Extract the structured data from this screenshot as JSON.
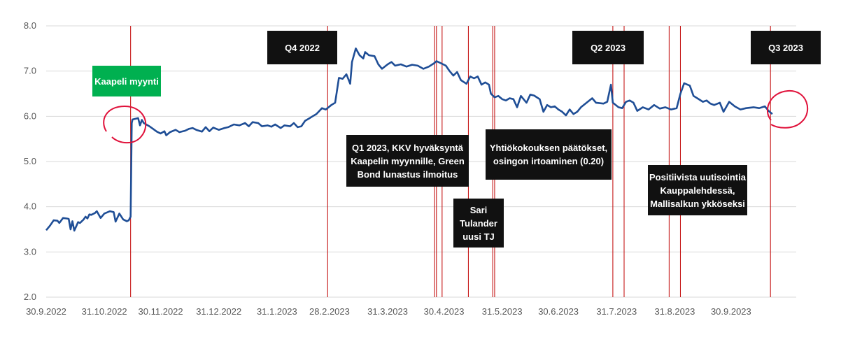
{
  "chart_data": {
    "type": "line",
    "title": "",
    "xlabel": "",
    "ylabel": "",
    "ylim": [
      2.0,
      8.0
    ],
    "y_ticks": [
      "2.0",
      "3.0",
      "4.0",
      "5.0",
      "6.0",
      "7.0",
      "8.0"
    ],
    "x_range": [
      "2022-09-30",
      "2023-10-31"
    ],
    "x_ticks": [
      {
        "date": "2022-09-30",
        "label": "30.9.2022"
      },
      {
        "date": "2022-10-31",
        "label": "31.10.2022"
      },
      {
        "date": "2022-11-30",
        "label": "30.11.2022"
      },
      {
        "date": "2022-12-31",
        "label": "31.12.2022"
      },
      {
        "date": "2023-01-31",
        "label": "31.1.2023"
      },
      {
        "date": "2023-02-28",
        "label": "28.2.2023"
      },
      {
        "date": "2023-03-31",
        "label": "31.3.2023"
      },
      {
        "date": "2023-04-30",
        "label": "30.4.2023"
      },
      {
        "date": "2023-05-31",
        "label": "31.5.2023"
      },
      {
        "date": "2023-06-30",
        "label": "30.6.2023"
      },
      {
        "date": "2023-07-31",
        "label": "31.7.2023"
      },
      {
        "date": "2023-08-31",
        "label": "31.8.2023"
      },
      {
        "date": "2023-09-30",
        "label": "30.9.2023"
      }
    ],
    "grid": true,
    "series": [
      {
        "color": "#1f4e96",
        "points": [
          [
            "2022-09-30",
            3.48
          ],
          [
            "2022-10-02",
            3.58
          ],
          [
            "2022-10-04",
            3.7
          ],
          [
            "2022-10-06",
            3.69
          ],
          [
            "2022-10-07",
            3.64
          ],
          [
            "2022-10-09",
            3.75
          ],
          [
            "2022-10-11",
            3.74
          ],
          [
            "2022-10-12",
            3.73
          ],
          [
            "2022-10-13",
            3.5
          ],
          [
            "2022-10-14",
            3.68
          ],
          [
            "2022-10-15",
            3.47
          ],
          [
            "2022-10-17",
            3.66
          ],
          [
            "2022-10-18",
            3.64
          ],
          [
            "2022-10-20",
            3.72
          ],
          [
            "2022-10-21",
            3.78
          ],
          [
            "2022-10-22",
            3.74
          ],
          [
            "2022-10-23",
            3.83
          ],
          [
            "2022-10-24",
            3.82
          ],
          [
            "2022-10-26",
            3.86
          ],
          [
            "2022-10-27",
            3.9
          ],
          [
            "2022-10-29",
            3.75
          ],
          [
            "2022-10-31",
            3.85
          ],
          [
            "2022-11-03",
            3.9
          ],
          [
            "2022-11-05",
            3.88
          ],
          [
            "2022-11-06",
            3.67
          ],
          [
            "2022-11-08",
            3.85
          ],
          [
            "2022-11-10",
            3.72
          ],
          [
            "2022-11-12",
            3.68
          ],
          [
            "2022-11-13",
            3.7
          ],
          [
            "2022-11-14",
            3.78
          ],
          [
            "2022-11-14.6",
            5.85
          ],
          [
            "2022-11-15",
            5.93
          ],
          [
            "2022-11-17",
            5.95
          ],
          [
            "2022-11-18",
            5.96
          ],
          [
            "2022-11-19",
            5.8
          ],
          [
            "2022-11-20",
            5.92
          ],
          [
            "2022-11-21",
            5.85
          ],
          [
            "2022-11-24",
            5.78
          ],
          [
            "2022-11-26",
            5.72
          ],
          [
            "2022-11-28",
            5.66
          ],
          [
            "2022-11-30",
            5.62
          ],
          [
            "2022-12-02",
            5.67
          ],
          [
            "2022-12-03",
            5.58
          ],
          [
            "2022-12-05",
            5.65
          ],
          [
            "2022-12-08",
            5.7
          ],
          [
            "2022-12-10",
            5.65
          ],
          [
            "2022-12-13",
            5.68
          ],
          [
            "2022-12-15",
            5.72
          ],
          [
            "2022-12-17",
            5.74
          ],
          [
            "2022-12-19",
            5.7
          ],
          [
            "2022-12-22",
            5.66
          ],
          [
            "2022-12-24",
            5.76
          ],
          [
            "2022-12-26",
            5.67
          ],
          [
            "2022-12-28",
            5.75
          ],
          [
            "2022-12-31",
            5.7
          ],
          [
            "2023-01-03",
            5.74
          ],
          [
            "2023-01-05",
            5.76
          ],
          [
            "2023-01-08",
            5.82
          ],
          [
            "2023-01-11",
            5.8
          ],
          [
            "2023-01-14",
            5.85
          ],
          [
            "2023-01-16",
            5.78
          ],
          [
            "2023-01-18",
            5.87
          ],
          [
            "2023-01-21",
            5.85
          ],
          [
            "2023-01-23",
            5.78
          ],
          [
            "2023-01-26",
            5.8
          ],
          [
            "2023-01-28",
            5.77
          ],
          [
            "2023-01-30",
            5.82
          ],
          [
            "2023-02-02",
            5.74
          ],
          [
            "2023-02-04",
            5.8
          ],
          [
            "2023-02-07",
            5.78
          ],
          [
            "2023-02-09",
            5.85
          ],
          [
            "2023-02-11",
            5.76
          ],
          [
            "2023-02-13",
            5.78
          ],
          [
            "2023-02-15",
            5.9
          ],
          [
            "2023-02-17",
            5.95
          ],
          [
            "2023-02-19",
            6.0
          ],
          [
            "2023-02-21",
            6.05
          ],
          [
            "2023-02-24",
            6.18
          ],
          [
            "2023-02-26",
            6.15
          ],
          [
            "2023-03-01",
            6.25
          ],
          [
            "2023-03-03",
            6.3
          ],
          [
            "2023-03-05",
            6.85
          ],
          [
            "2023-03-07",
            6.83
          ],
          [
            "2023-03-09",
            6.93
          ],
          [
            "2023-03-11",
            6.72
          ],
          [
            "2023-03-12",
            7.2
          ],
          [
            "2023-03-14",
            7.5
          ],
          [
            "2023-03-16",
            7.35
          ],
          [
            "2023-03-18",
            7.28
          ],
          [
            "2023-03-19",
            7.42
          ],
          [
            "2023-03-21",
            7.35
          ],
          [
            "2023-03-24",
            7.33
          ],
          [
            "2023-03-26",
            7.15
          ],
          [
            "2023-03-28",
            7.05
          ],
          [
            "2023-03-31",
            7.15
          ],
          [
            "2023-04-02",
            7.2
          ],
          [
            "2023-04-04",
            7.12
          ],
          [
            "2023-04-07",
            7.15
          ],
          [
            "2023-04-10",
            7.1
          ],
          [
            "2023-04-13",
            7.14
          ],
          [
            "2023-04-16",
            7.12
          ],
          [
            "2023-04-19",
            7.05
          ],
          [
            "2023-04-22",
            7.1
          ],
          [
            "2023-04-25",
            7.18
          ],
          [
            "2023-04-26",
            7.22
          ],
          [
            "2023-04-28",
            7.18
          ],
          [
            "2023-05-01",
            7.12
          ],
          [
            "2023-05-03",
            7.0
          ],
          [
            "2023-05-05",
            6.9
          ],
          [
            "2023-05-07",
            6.98
          ],
          [
            "2023-05-09",
            6.8
          ],
          [
            "2023-05-12",
            6.72
          ],
          [
            "2023-05-14",
            6.88
          ],
          [
            "2023-05-16",
            6.84
          ],
          [
            "2023-05-18",
            6.88
          ],
          [
            "2023-05-20",
            6.7
          ],
          [
            "2023-05-22",
            6.75
          ],
          [
            "2023-05-24",
            6.7
          ],
          [
            "2023-05-25",
            6.5
          ],
          [
            "2023-05-27",
            6.42
          ],
          [
            "2023-05-29",
            6.45
          ],
          [
            "2023-05-31",
            6.38
          ],
          [
            "2023-06-02",
            6.35
          ],
          [
            "2023-06-04",
            6.4
          ],
          [
            "2023-06-06",
            6.38
          ],
          [
            "2023-06-08",
            6.2
          ],
          [
            "2023-06-10",
            6.45
          ],
          [
            "2023-06-13",
            6.3
          ],
          [
            "2023-06-15",
            6.48
          ],
          [
            "2023-06-17",
            6.46
          ],
          [
            "2023-06-20",
            6.38
          ],
          [
            "2023-06-22",
            6.1
          ],
          [
            "2023-06-24",
            6.25
          ],
          [
            "2023-06-26",
            6.2
          ],
          [
            "2023-06-28",
            6.22
          ],
          [
            "2023-06-30",
            6.15
          ],
          [
            "2023-07-02",
            6.1
          ],
          [
            "2023-07-04",
            6.02
          ],
          [
            "2023-07-06",
            6.15
          ],
          [
            "2023-07-08",
            6.05
          ],
          [
            "2023-07-10",
            6.1
          ],
          [
            "2023-07-12",
            6.2
          ],
          [
            "2023-07-15",
            6.3
          ],
          [
            "2023-07-18",
            6.4
          ],
          [
            "2023-07-20",
            6.3
          ],
          [
            "2023-07-24",
            6.28
          ],
          [
            "2023-07-26",
            6.32
          ],
          [
            "2023-07-28",
            6.7
          ],
          [
            "2023-07-29",
            6.3
          ],
          [
            "2023-08-01",
            6.2
          ],
          [
            "2023-08-03",
            6.18
          ],
          [
            "2023-08-05",
            6.32
          ],
          [
            "2023-08-07",
            6.35
          ],
          [
            "2023-08-09",
            6.3
          ],
          [
            "2023-08-11",
            6.12
          ],
          [
            "2023-08-14",
            6.2
          ],
          [
            "2023-08-17",
            6.15
          ],
          [
            "2023-08-20",
            6.25
          ],
          [
            "2023-08-23",
            6.17
          ],
          [
            "2023-08-26",
            6.2
          ],
          [
            "2023-08-29",
            6.15
          ],
          [
            "2023-09-01",
            6.18
          ],
          [
            "2023-09-03",
            6.5
          ],
          [
            "2023-09-05",
            6.73
          ],
          [
            "2023-09-08",
            6.68
          ],
          [
            "2023-09-10",
            6.45
          ],
          [
            "2023-09-12",
            6.4
          ],
          [
            "2023-09-15",
            6.32
          ],
          [
            "2023-09-17",
            6.35
          ],
          [
            "2023-09-19",
            6.28
          ],
          [
            "2023-09-21",
            6.25
          ],
          [
            "2023-09-24",
            6.3
          ],
          [
            "2023-09-26",
            6.1
          ],
          [
            "2023-09-29",
            6.32
          ],
          [
            "2023-10-02",
            6.22
          ],
          [
            "2023-10-05",
            6.15
          ],
          [
            "2023-10-08",
            6.18
          ],
          [
            "2023-10-12",
            6.2
          ],
          [
            "2023-10-15",
            6.18
          ],
          [
            "2023-10-18",
            6.22
          ],
          [
            "2023-10-20",
            6.12
          ],
          [
            "2023-10-22",
            6.05
          ]
        ]
      }
    ],
    "event_lines": [
      "2022-11-14",
      "2023-02-27",
      "2023-04-25",
      "2023-04-26",
      "2023-04-29",
      "2023-05-13",
      "2023-05-26",
      "2023-05-27",
      "2023-07-29",
      "2023-08-04",
      "2023-08-28",
      "2023-09-03",
      "2023-10-21"
    ],
    "event_line_color": "#c00000",
    "annotations": [
      {
        "lines": [
          "Kaapeli myynti"
        ],
        "style": "green"
      },
      {
        "lines": [
          "Q4 2022"
        ],
        "style": "dark"
      },
      {
        "lines": [
          "Q1 2023, KKV hyväksyntä",
          "Kaapelin myynnille, Green",
          "Bond lunastus ilmoitus"
        ],
        "style": "dark"
      },
      {
        "lines": [
          "Sari",
          "Tulander",
          "uusi TJ"
        ],
        "style": "dark"
      },
      {
        "lines": [
          "Yhtiökokouksen päätökset,",
          "osingon irtoaminen (0.20)"
        ],
        "style": "dark"
      },
      {
        "lines": [
          "Q2 2023"
        ],
        "style": "dark"
      },
      {
        "lines": [
          "Positiivista uutisointia",
          "Kauppalehdessä,",
          "Mallisalkun ykköseksi"
        ],
        "style": "dark"
      },
      {
        "lines": [
          "Q3 2023"
        ],
        "style": "dark"
      }
    ],
    "highlight_circle_color": "#e0113a"
  }
}
